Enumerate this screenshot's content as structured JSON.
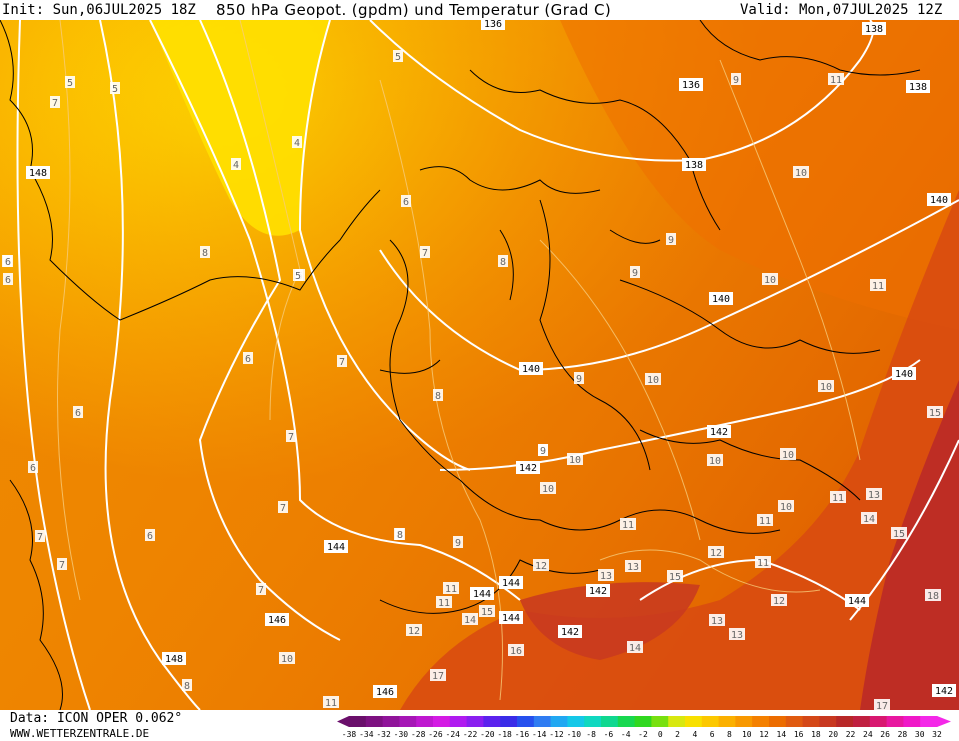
{
  "header": {
    "init_label": "Init: Sun,06JUL2025 18Z",
    "title": "850 hPa Geopot. (gpdm) und Temperatur (Grad C)",
    "valid_label": "Valid: Mon,07JUL2025 12Z"
  },
  "footer": {
    "data_source": "Data: ICON OPER 0.062°",
    "website": "WWW.WETTERZENTRALE.DE"
  },
  "colorbar": {
    "ticks": [
      "-38",
      "-34",
      "-32",
      "-30",
      "-28",
      "-26",
      "-24",
      "-22",
      "-20",
      "-18",
      "-16",
      "-14",
      "-12",
      "-10",
      "-8",
      "-6",
      "-4",
      "-2",
      "0",
      "2",
      "4",
      "6",
      "8",
      "10",
      "12",
      "14",
      "16",
      "18",
      "20",
      "22",
      "24",
      "26",
      "28",
      "30",
      "32"
    ],
    "colors": [
      "#6a0f6b",
      "#7d1181",
      "#90149a",
      "#a616b6",
      "#bf18d0",
      "#d41be4",
      "#b01bf0",
      "#8a1ff0",
      "#5c22ee",
      "#3a2ce8",
      "#2650ee",
      "#2f7cf2",
      "#21a8f2",
      "#15c8e8",
      "#10d8c0",
      "#10d890",
      "#18d850",
      "#30d820",
      "#78e010",
      "#d8e810",
      "#f8e000",
      "#fcc800",
      "#fbb000",
      "#f89800",
      "#f48000",
      "#ec6c00",
      "#e05a10",
      "#d44818",
      "#c83820",
      "#b82828",
      "#c02040",
      "#d81870",
      "#e818a0",
      "#f018c8",
      "#f428e8"
    ]
  },
  "map": {
    "geopotential_labels": [
      "136",
      "138",
      "136",
      "138",
      "138",
      "140",
      "140",
      "140",
      "140",
      "142",
      "142",
      "142",
      "142",
      "142",
      "144",
      "144",
      "144",
      "144",
      "144",
      "146",
      "146",
      "146",
      "148",
      "148"
    ],
    "temperature_labels": [
      "5",
      "5",
      "5",
      "5",
      "7",
      "4",
      "4",
      "8",
      "6",
      "6",
      "6",
      "6",
      "7",
      "7",
      "7",
      "7",
      "8",
      "8",
      "7",
      "6",
      "6",
      "7",
      "6",
      "7",
      "9",
      "9",
      "9",
      "8",
      "9",
      "9",
      "9",
      "10",
      "10",
      "10",
      "10",
      "10",
      "10",
      "10",
      "10",
      "10",
      "10",
      "11",
      "11",
      "11",
      "11",
      "11",
      "11",
      "11",
      "12",
      "12",
      "12",
      "12",
      "13",
      "13",
      "13",
      "13",
      "13",
      "14",
      "14",
      "14",
      "15",
      "15",
      "15",
      "15",
      "16",
      "17",
      "17",
      "18",
      "11",
      "11",
      "9",
      "5",
      "6",
      "8",
      "8"
    ]
  }
}
